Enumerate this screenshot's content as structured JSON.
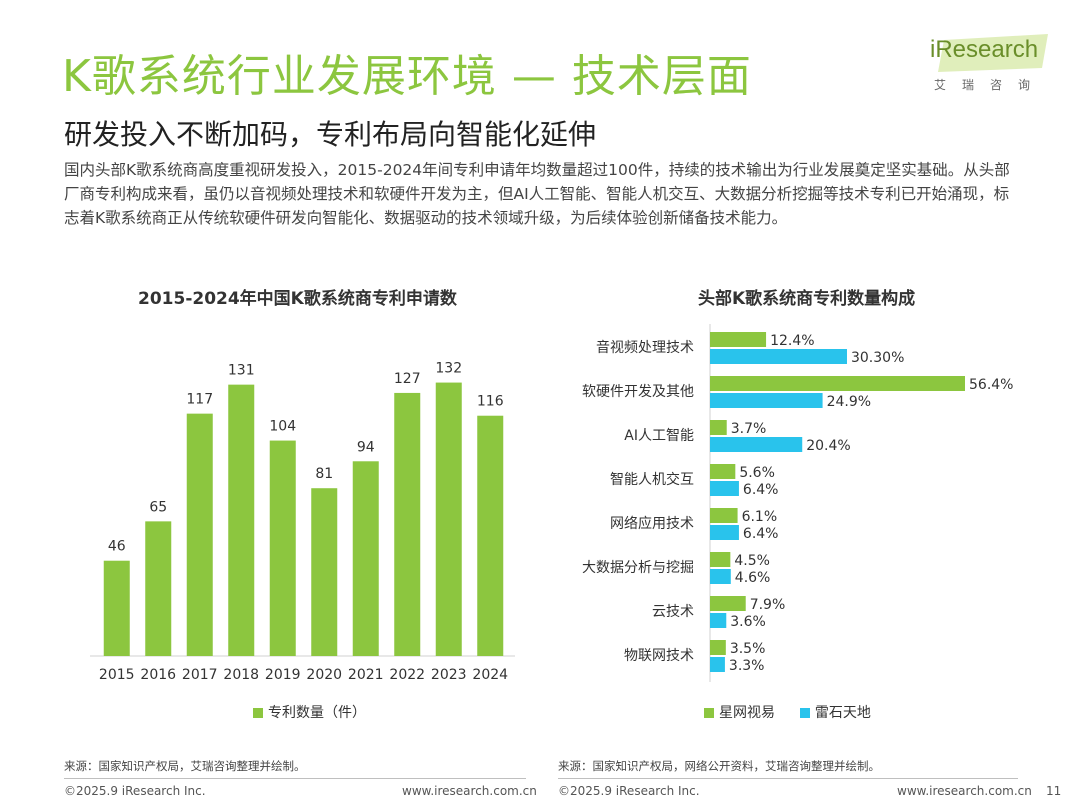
{
  "header": {
    "title": "K歌系统行业发展环境 — 技术层面",
    "subtitle": "研发投入不断加码，专利布局向智能化延伸",
    "description": "国内头部K歌系统商高度重视研发投入，2015-2024年间专利申请年均数量超过100件，持续的技术输出为行业发展奠定坚实基础。从头部厂商专利构成来看，虽仍以音视频处理技术和软硬件开发为主，但AI人工智能、智能人机交互、大数据分析挖掘等技术专利已开始涌现，标志着K歌系统商正从传统软硬件研发向智能化、数据驱动的技术领域升级，为后续体验创新储备技术能力。"
  },
  "logo": {
    "main": "iResearch",
    "sub": "艾瑞咨询"
  },
  "colors": {
    "green": "#8cc63f",
    "blue": "#29c3ec",
    "title_green": "#8cc63f"
  },
  "chart_data": [
    {
      "type": "bar",
      "title": "2015-2024年中国K歌系统商专利申请数",
      "categories": [
        "2015",
        "2016",
        "2017",
        "2018",
        "2019",
        "2020",
        "2021",
        "2022",
        "2023",
        "2024"
      ],
      "series": [
        {
          "name": "专利数量（件）",
          "values": [
            46,
            65,
            117,
            131,
            104,
            81,
            94,
            127,
            132,
            116
          ]
        }
      ],
      "ylim": [
        0,
        140
      ],
      "legend": "bottom"
    },
    {
      "type": "bar",
      "orientation": "horizontal",
      "title": "头部K歌系统商专利数量构成",
      "categories": [
        "音视频处理技术",
        "软硬件开发及其他",
        "AI人工智能",
        "智能人机交互",
        "网络应用技术",
        "大数据分析与挖掘",
        "云技术",
        "物联网技术"
      ],
      "series": [
        {
          "name": "星网视易",
          "values": [
            12.4,
            56.4,
            3.7,
            5.6,
            6.1,
            4.5,
            7.9,
            3.5
          ],
          "labels": [
            "12.4%",
            "56.4%",
            "3.7%",
            "5.6%",
            "6.1%",
            "4.5%",
            "7.9%",
            "3.5%"
          ]
        },
        {
          "name": "雷石天地",
          "values": [
            30.3,
            24.9,
            20.4,
            6.4,
            6.4,
            4.6,
            3.6,
            3.3
          ],
          "labels": [
            "30.30%",
            "24.9%",
            "20.4%",
            "6.4%",
            "6.4%",
            "4.6%",
            "3.6%",
            "3.3%"
          ]
        }
      ],
      "xlim": [
        0,
        56.4
      ],
      "legend": "bottom"
    }
  ],
  "sources": {
    "left": "来源：国家知识产权局，艾瑞咨询整理并绘制。",
    "right": "来源：国家知识产权局，网络公开资料，艾瑞咨询整理并绘制。"
  },
  "footer": {
    "left_copyright": "©2025.9 iResearch Inc.",
    "left_url": "www.iresearch.com.cn",
    "right_copyright": "©2025.9 iResearch Inc.",
    "right_url": "www.iresearch.com.cn",
    "page_number": "11"
  }
}
